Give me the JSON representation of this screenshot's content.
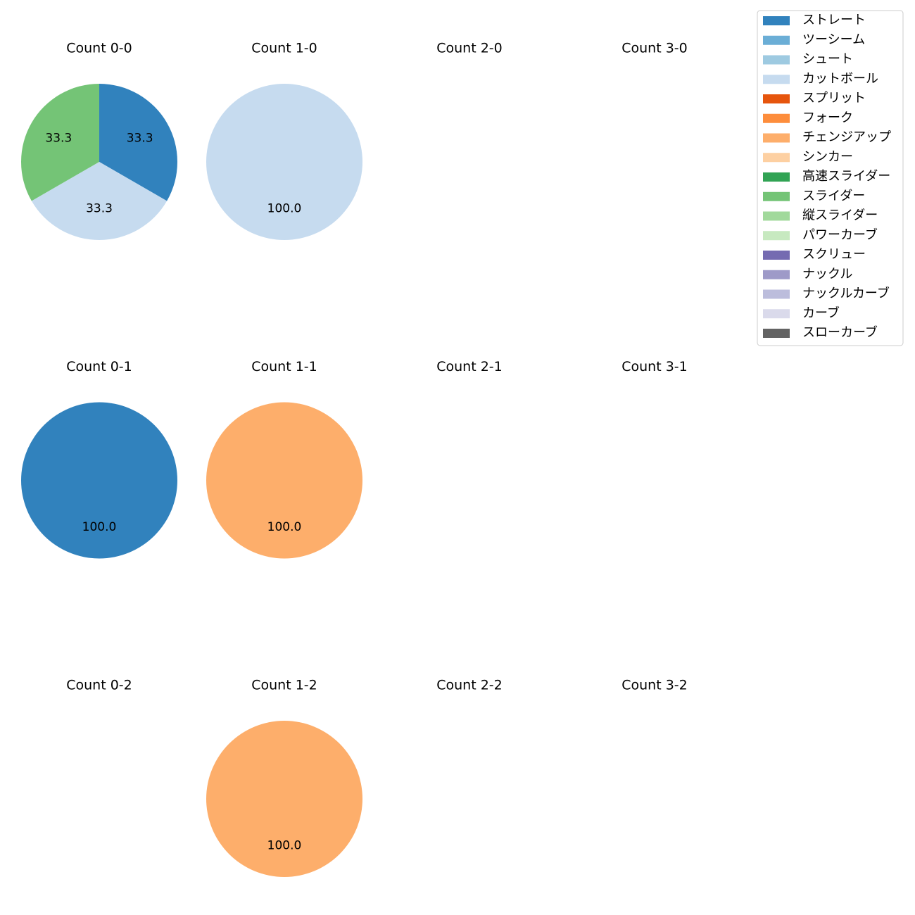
{
  "chart_data": [
    {
      "type": "pie",
      "title": "Count 0-0",
      "categories": [
        "ストレート",
        "カットボール",
        "スライダー"
      ],
      "values": [
        33.3,
        33.3,
        33.3
      ],
      "colors": [
        "#3182bd",
        "#c6dbef",
        "#74c476"
      ],
      "start_angle": 90,
      "direction": "clockwise"
    },
    {
      "type": "pie",
      "title": "Count 1-0",
      "categories": [
        "カットボール"
      ],
      "values": [
        100
      ],
      "value_labels": [
        "100.0"
      ],
      "colors": [
        "#c6dbef"
      ],
      "start_angle": 90,
      "direction": "clockwise"
    },
    {
      "type": "pie",
      "title": "Count 2-0",
      "categories": [],
      "values": [],
      "colors": []
    },
    {
      "type": "pie",
      "title": "Count 3-0",
      "categories": [],
      "values": [],
      "colors": []
    },
    {
      "type": "pie",
      "title": "Count 0-1",
      "categories": [
        "ストレート"
      ],
      "values": [
        100
      ],
      "value_labels": [
        "100.0"
      ],
      "colors": [
        "#3182bd"
      ],
      "start_angle": 90,
      "direction": "clockwise"
    },
    {
      "type": "pie",
      "title": "Count 1-1",
      "categories": [
        "チェンジアップ"
      ],
      "values": [
        100
      ],
      "value_labels": [
        "100.0"
      ],
      "colors": [
        "#fdae6b"
      ],
      "start_angle": 90,
      "direction": "clockwise"
    },
    {
      "type": "pie",
      "title": "Count 2-1",
      "categories": [],
      "values": [],
      "colors": []
    },
    {
      "type": "pie",
      "title": "Count 3-1",
      "categories": [],
      "values": [],
      "colors": []
    },
    {
      "type": "pie",
      "title": "Count 0-2",
      "categories": [],
      "values": [],
      "colors": []
    },
    {
      "type": "pie",
      "title": "Count 1-2",
      "categories": [
        "チェンジアップ"
      ],
      "values": [
        100
      ],
      "value_labels": [
        "100.0"
      ],
      "colors": [
        "#fdae6b"
      ],
      "start_angle": 90,
      "direction": "clockwise"
    },
    {
      "type": "pie",
      "title": "Count 2-2",
      "categories": [],
      "values": [],
      "colors": []
    },
    {
      "type": "pie",
      "title": "Count 3-2",
      "categories": [],
      "values": [],
      "colors": []
    }
  ],
  "legend": {
    "position": "upper right",
    "labels": [
      "ストレート",
      "ツーシーム",
      "シュート",
      "カットボール",
      "スプリット",
      "フォーク",
      "チェンジアップ",
      "シンカー",
      "高速スライダー",
      "スライダー",
      "縦スライダー",
      "パワーカーブ",
      "スクリュー",
      "ナックル",
      "ナックルカーブ",
      "カーブ",
      "スローカーブ"
    ],
    "colors": [
      "#3182bd",
      "#6baed6",
      "#9ecae1",
      "#c6dbef",
      "#e6550d",
      "#fd8d3c",
      "#fdae6b",
      "#fdd0a2",
      "#31a354",
      "#74c476",
      "#a1d99b",
      "#c7e9c0",
      "#756bb1",
      "#9e9ac8",
      "#bcbddc",
      "#dadaeb",
      "#636363"
    ]
  }
}
